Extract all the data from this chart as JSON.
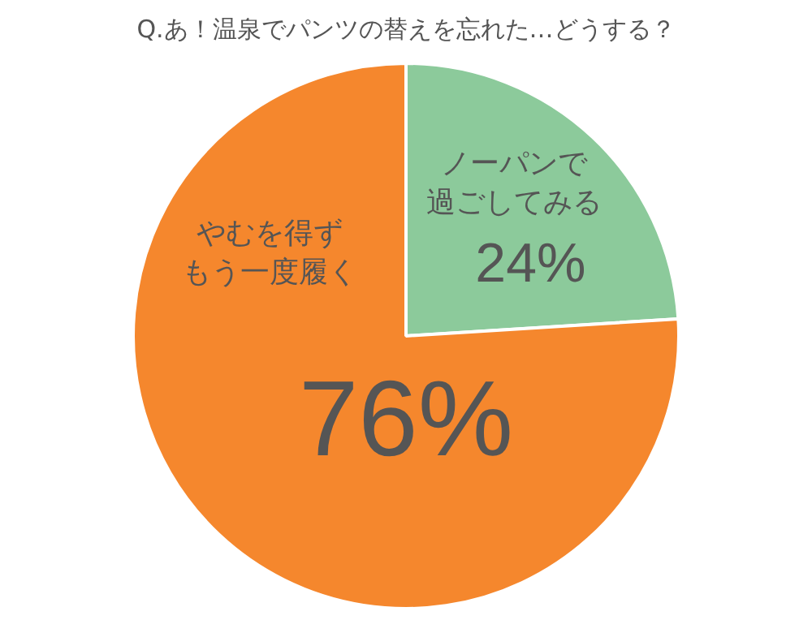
{
  "chart_data": {
    "type": "pie",
    "title": "Q.あ！温泉でパンツの替えを忘れた…どうする？",
    "categories": [
      "ノーパンで過ごしてみる",
      "やむを得ずもう一度履く"
    ],
    "values": [
      24,
      76
    ],
    "colors": [
      "#8cca9b",
      "#f5872d"
    ],
    "value_labels": [
      "24%",
      "76%"
    ],
    "legend": false
  }
}
